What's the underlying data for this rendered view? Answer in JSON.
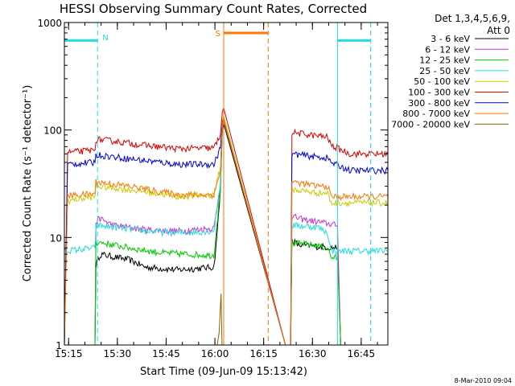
{
  "chart_data": {
    "type": "line",
    "title": "HESSI Observing Summary Count Rates, Corrected",
    "xlabel": "Start Time (09-Jun-09 15:13:42)",
    "ylabel": "Corrected Count Rate (s⁻¹ detector⁻¹)",
    "yscale": "log",
    "xlim_minutes": [
      0,
      99.5
    ],
    "ylim": [
      1,
      1000
    ],
    "x_ticks": [
      {
        "t": 1.3,
        "label": "15:15"
      },
      {
        "t": 16.3,
        "label": "15:30"
      },
      {
        "t": 31.3,
        "label": "15:45"
      },
      {
        "t": 46.3,
        "label": "16:00"
      },
      {
        "t": 61.3,
        "label": "16:15"
      },
      {
        "t": 76.3,
        "label": "16:30"
      },
      {
        "t": 91.3,
        "label": "16:45"
      }
    ],
    "y_ticks": [
      {
        "v": 1,
        "label": "1"
      },
      {
        "v": 10,
        "label": "10"
      },
      {
        "v": 100,
        "label": "100"
      },
      {
        "v": 1000,
        "label": "1000"
      }
    ],
    "legend_header": [
      "Det 1,3,4,5,6,9,",
      "Att 0"
    ],
    "series": [
      {
        "name": "3 - 6 keV",
        "color": "#000000",
        "points": [
          [
            0,
            1.0
          ],
          [
            9.4,
            1.0
          ],
          [
            9.7,
            5.5
          ],
          [
            11,
            7.0
          ],
          [
            20,
            6.2
          ],
          [
            25,
            5.3
          ],
          [
            35,
            5.0
          ],
          [
            46,
            5.3
          ],
          [
            47,
            11
          ],
          [
            48,
            28
          ],
          [
            48.6,
            100
          ],
          [
            49,
            115
          ],
          [
            68,
            1.0
          ],
          [
            69.6,
            1.0
          ],
          [
            70,
            9.5
          ],
          [
            72,
            8.5
          ],
          [
            84,
            8.0
          ],
          [
            85,
            1.0
          ],
          [
            99.5,
            1.0
          ]
        ]
      },
      {
        "name": "6 - 12 keV",
        "color": "#cc33cc",
        "points": [
          [
            0,
            1.0
          ],
          [
            9.4,
            1.0
          ],
          [
            9.7,
            14
          ],
          [
            11,
            15
          ],
          [
            15,
            13
          ],
          [
            25,
            11.8
          ],
          [
            35,
            11.5
          ],
          [
            46,
            12.2
          ],
          [
            48,
            30
          ],
          [
            48.6,
            110
          ],
          [
            49,
            125
          ],
          [
            68,
            1.0
          ],
          [
            69.6,
            1.0
          ],
          [
            70,
            16
          ],
          [
            72,
            15
          ],
          [
            84,
            13
          ],
          [
            85,
            1.0
          ],
          [
            99.5,
            1.0
          ]
        ]
      },
      {
        "name": "12 - 25 keV",
        "color": "#00cc00",
        "points": [
          [
            0,
            1.0
          ],
          [
            9.4,
            1.0
          ],
          [
            9.7,
            9.0
          ],
          [
            11,
            9.0
          ],
          [
            20,
            8.0
          ],
          [
            30,
            7.2
          ],
          [
            46,
            6.8
          ],
          [
            48,
            30
          ],
          [
            48.6,
            115
          ],
          [
            49,
            130
          ],
          [
            68,
            1.0
          ],
          [
            69.6,
            1.0
          ],
          [
            70,
            8.8
          ],
          [
            72,
            8.8
          ],
          [
            77,
            8.5
          ],
          [
            81,
            8.0
          ],
          [
            82,
            6.5
          ],
          [
            84,
            6.5
          ],
          [
            85,
            1.0
          ],
          [
            99.5,
            1.0
          ]
        ]
      },
      {
        "name": "25 - 50 keV",
        "color": "#22dddd",
        "points": [
          [
            0,
            7.5
          ],
          [
            9.4,
            8.0
          ],
          [
            9.7,
            13
          ],
          [
            15,
            12.5
          ],
          [
            25,
            11.5
          ],
          [
            35,
            11
          ],
          [
            46,
            11.5
          ],
          [
            48,
            33
          ],
          [
            48.6,
            118
          ],
          [
            49,
            130
          ],
          [
            68,
            1.0
          ],
          [
            69.6,
            1.0
          ],
          [
            70,
            13
          ],
          [
            78,
            12.5
          ],
          [
            81,
            11
          ],
          [
            82,
            7.5
          ],
          [
            99.5,
            7.5
          ]
        ]
      },
      {
        "name": "50 - 100 keV",
        "color": "#cccc00",
        "points": [
          [
            0,
            1.0
          ],
          [
            1,
            22
          ],
          [
            9.4,
            24
          ],
          [
            9.7,
            30
          ],
          [
            20,
            28
          ],
          [
            35,
            24
          ],
          [
            46,
            25
          ],
          [
            48,
            45
          ],
          [
            48.6,
            125
          ],
          [
            49,
            135
          ],
          [
            68,
            1.0
          ],
          [
            69.6,
            1.0
          ],
          [
            70,
            28
          ],
          [
            78,
            26
          ],
          [
            81,
            26
          ],
          [
            82,
            21
          ],
          [
            99.5,
            21
          ]
        ]
      },
      {
        "name": "100 - 300 keV",
        "color": "#dd0000",
        "points": [
          [
            0,
            1.0
          ],
          [
            1,
            62
          ],
          [
            9.4,
            65
          ],
          [
            9.7,
            82
          ],
          [
            15,
            79
          ],
          [
            25,
            72
          ],
          [
            35,
            67
          ],
          [
            46,
            68
          ],
          [
            48,
            90
          ],
          [
            48.6,
            150
          ],
          [
            49,
            160
          ],
          [
            68,
            1.0
          ],
          [
            69.6,
            1.0
          ],
          [
            70,
            95
          ],
          [
            78,
            88
          ],
          [
            81,
            86
          ],
          [
            82,
            72
          ],
          [
            88,
            60
          ],
          [
            99.5,
            60
          ]
        ]
      },
      {
        "name": "300 - 800 keV",
        "color": "#0000dd",
        "points": [
          [
            0,
            1.0
          ],
          [
            1,
            48
          ],
          [
            9.4,
            50
          ],
          [
            9.7,
            59
          ],
          [
            20,
            54
          ],
          [
            35,
            48
          ],
          [
            46,
            48
          ],
          [
            48,
            68
          ],
          [
            48.6,
            120
          ],
          [
            49,
            125
          ],
          [
            68,
            1.0
          ],
          [
            69.6,
            1.0
          ],
          [
            70,
            60
          ],
          [
            78,
            56
          ],
          [
            81,
            55
          ],
          [
            82,
            50
          ],
          [
            88,
            42
          ],
          [
            99.5,
            42
          ]
        ]
      },
      {
        "name": "800 - 7000 keV",
        "color": "#ff7700",
        "points": [
          [
            0,
            1.0
          ],
          [
            1,
            24.5
          ],
          [
            9.4,
            25.5
          ],
          [
            9.7,
            33
          ],
          [
            20,
            30
          ],
          [
            35,
            25
          ],
          [
            46,
            25
          ],
          [
            48,
            42
          ],
          [
            48.6,
            118
          ],
          [
            49,
            125
          ],
          [
            68,
            1.0
          ],
          [
            69.6,
            1.0
          ],
          [
            70,
            33
          ],
          [
            78,
            30
          ],
          [
            81,
            30
          ],
          [
            82,
            24
          ],
          [
            99.5,
            24
          ]
        ]
      },
      {
        "name": "7000 - 20000 keV",
        "color": "#886600",
        "points": [
          [
            47,
            1.0
          ],
          [
            47.6,
            1.3
          ],
          [
            48.2,
            3.0
          ],
          [
            48.5,
            1.0
          ]
        ]
      }
    ],
    "annotations": {
      "night": {
        "label": "N",
        "color": "#22dddd",
        "bands": [
          [
            0,
            10.2
          ],
          [
            84,
            94.2
          ]
        ],
        "level": 680
      },
      "saa": {
        "label": "S",
        "color": "#ff7700",
        "bands": [
          [
            49,
            62.7
          ]
        ],
        "level": 800
      }
    }
  },
  "footer": {
    "timestamp": "8-Mar-2010 09:04"
  }
}
